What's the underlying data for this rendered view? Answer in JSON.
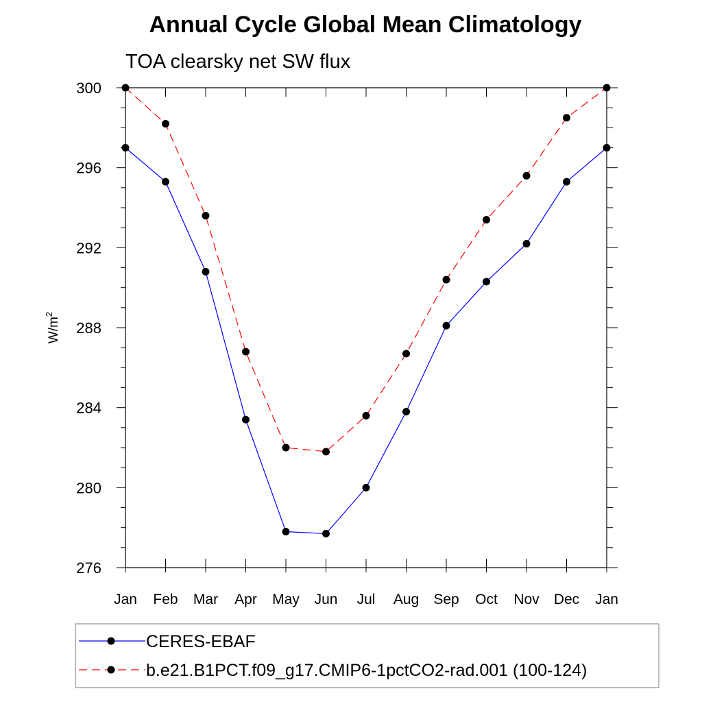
{
  "chart_data": {
    "type": "line",
    "title": "Annual Cycle Global Mean Climatology",
    "subtitle": "TOA clearsky net SW flux",
    "ylabel": "W/m",
    "ylabel_superscript": "2",
    "ylim": [
      276,
      300
    ],
    "yticks": [
      "276",
      "280",
      "284",
      "288",
      "292",
      "296",
      "300"
    ],
    "categories": [
      "Jan",
      "Feb",
      "Mar",
      "Apr",
      "May",
      "Jun",
      "Jul",
      "Aug",
      "Sep",
      "Oct",
      "Nov",
      "Dec",
      "Jan"
    ],
    "series": [
      {
        "name": "CERES-EBAF",
        "color": "#0000ff",
        "dashed": false,
        "values": [
          297.0,
          295.3,
          290.8,
          283.4,
          277.8,
          277.7,
          280.0,
          283.8,
          288.1,
          290.3,
          292.2,
          295.3,
          297.0
        ]
      },
      {
        "name": "b.e21.B1PCT.f09_g17.CMIP6-1pctCO2-rad.001 (100-124)",
        "color": "#ff0000",
        "dashed": true,
        "values": [
          300.0,
          298.2,
          293.6,
          286.8,
          282.0,
          281.8,
          283.6,
          286.7,
          290.4,
          293.4,
          295.6,
          298.5,
          300.0
        ]
      }
    ],
    "marker_color": "#000000",
    "grid": false,
    "legend_position": "bottom"
  }
}
